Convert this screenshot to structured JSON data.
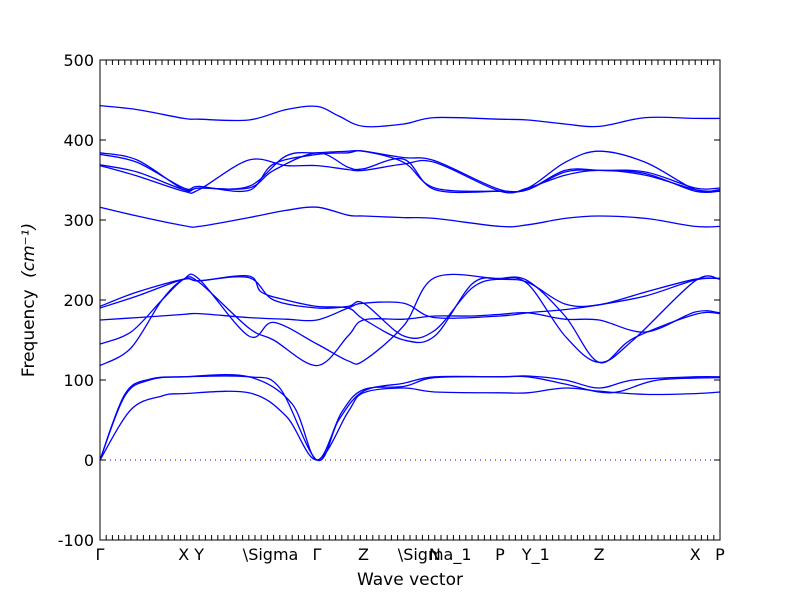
{
  "chart_data": {
    "type": "line",
    "xlabel": "Wave vector",
    "ylabel": "Frequency",
    "ylabel_unit": "(cm⁻¹)",
    "ylim": [
      -100,
      500
    ],
    "xlim": [
      0,
      1
    ],
    "yticks": [
      -100,
      0,
      100,
      200,
      300,
      400,
      500
    ],
    "zero_line": true,
    "hsym_points": [
      {
        "label": "Γ",
        "x": 0.0
      },
      {
        "label": "X",
        "x": 0.135
      },
      {
        "label": "Y",
        "x": 0.16
      },
      {
        "label": "\\Sigma",
        "x": 0.24
      },
      {
        "label": "Γ",
        "x": 0.35
      },
      {
        "label": "Z",
        "x": 0.425
      },
      {
        "label": "\\Sigma_1",
        "x": 0.49
      },
      {
        "label": "N",
        "x": 0.54
      },
      {
        "label": "P",
        "x": 0.645
      },
      {
        "label": "Y_1",
        "x": 0.69
      },
      {
        "label": "Z",
        "x": 0.805
      },
      {
        "label": "X",
        "x": 0.96
      },
      {
        "label": "P",
        "x": 1.0
      }
    ],
    "series": [
      {
        "points": [
          [
            0,
            0
          ],
          [
            0.05,
            63
          ],
          [
            0.1,
            80
          ],
          [
            0.135,
            83
          ],
          [
            0.24,
            84
          ],
          [
            0.3,
            55
          ],
          [
            0.35,
            0
          ],
          [
            0.4,
            60
          ],
          [
            0.425,
            84
          ],
          [
            0.49,
            90
          ],
          [
            0.54,
            85
          ],
          [
            0.645,
            84
          ],
          [
            0.69,
            84
          ],
          [
            0.75,
            90
          ],
          [
            0.805,
            86
          ],
          [
            0.88,
            82
          ],
          [
            0.96,
            83
          ],
          [
            1.0,
            85
          ]
        ]
      },
      {
        "points": [
          [
            0,
            0
          ],
          [
            0.04,
            80
          ],
          [
            0.08,
            100
          ],
          [
            0.135,
            104
          ],
          [
            0.24,
            104
          ],
          [
            0.31,
            70
          ],
          [
            0.35,
            0
          ],
          [
            0.39,
            60
          ],
          [
            0.425,
            88
          ],
          [
            0.49,
            92
          ],
          [
            0.54,
            103
          ],
          [
            0.645,
            104
          ],
          [
            0.69,
            104
          ],
          [
            0.75,
            95
          ],
          [
            0.805,
            85
          ],
          [
            0.84,
            86
          ],
          [
            0.9,
            100
          ],
          [
            1.0,
            103
          ]
        ]
      },
      {
        "points": [
          [
            0,
            0
          ],
          [
            0.04,
            82
          ],
          [
            0.08,
            101
          ],
          [
            0.135,
            104
          ],
          [
            0.24,
            104
          ],
          [
            0.29,
            90
          ],
          [
            0.35,
            0
          ],
          [
            0.385,
            50
          ],
          [
            0.425,
            86
          ],
          [
            0.49,
            96
          ],
          [
            0.54,
            104
          ],
          [
            0.645,
            104
          ],
          [
            0.69,
            105
          ],
          [
            0.75,
            100
          ],
          [
            0.805,
            90
          ],
          [
            0.86,
            100
          ],
          [
            0.96,
            104
          ],
          [
            1.0,
            104
          ]
        ]
      },
      {
        "points": [
          [
            0,
            118
          ],
          [
            0.05,
            140
          ],
          [
            0.1,
            200
          ],
          [
            0.135,
            226
          ],
          [
            0.16,
            222
          ],
          [
            0.24,
            165
          ],
          [
            0.28,
            150
          ],
          [
            0.35,
            118
          ],
          [
            0.4,
            155
          ],
          [
            0.425,
            175
          ],
          [
            0.49,
            176
          ],
          [
            0.54,
            180
          ],
          [
            0.6,
            180
          ],
          [
            0.645,
            182
          ],
          [
            0.69,
            184
          ],
          [
            0.75,
            176
          ],
          [
            0.805,
            175
          ],
          [
            0.88,
            160
          ],
          [
            0.96,
            185
          ],
          [
            1.0,
            184
          ]
        ]
      },
      {
        "points": [
          [
            0,
            145
          ],
          [
            0.05,
            160
          ],
          [
            0.1,
            200
          ],
          [
            0.135,
            226
          ],
          [
            0.16,
            226
          ],
          [
            0.24,
            155
          ],
          [
            0.28,
            172
          ],
          [
            0.35,
            145
          ],
          [
            0.4,
            124
          ],
          [
            0.425,
            124
          ],
          [
            0.49,
            168
          ],
          [
            0.54,
            228
          ],
          [
            0.645,
            226
          ],
          [
            0.69,
            222
          ],
          [
            0.75,
            195
          ],
          [
            0.805,
            194
          ],
          [
            0.88,
            210
          ],
          [
            0.96,
            226
          ],
          [
            1.0,
            227
          ]
        ]
      },
      {
        "points": [
          [
            0,
            175
          ],
          [
            0.06,
            178
          ],
          [
            0.135,
            182
          ],
          [
            0.16,
            183
          ],
          [
            0.24,
            178
          ],
          [
            0.3,
            176
          ],
          [
            0.35,
            175
          ],
          [
            0.4,
            190
          ],
          [
            0.425,
            196
          ],
          [
            0.49,
            196
          ],
          [
            0.54,
            178
          ],
          [
            0.645,
            180
          ],
          [
            0.69,
            184
          ],
          [
            0.75,
            188
          ],
          [
            0.805,
            194
          ],
          [
            0.88,
            205
          ],
          [
            0.96,
            225
          ],
          [
            1.0,
            227
          ]
        ]
      },
      {
        "points": [
          [
            0,
            190
          ],
          [
            0.06,
            205
          ],
          [
            0.135,
            226
          ],
          [
            0.16,
            224
          ],
          [
            0.24,
            228
          ],
          [
            0.28,
            200
          ],
          [
            0.35,
            190
          ],
          [
            0.4,
            192
          ],
          [
            0.425,
            196
          ],
          [
            0.49,
            155
          ],
          [
            0.54,
            162
          ],
          [
            0.6,
            215
          ],
          [
            0.645,
            226
          ],
          [
            0.69,
            220
          ],
          [
            0.75,
            155
          ],
          [
            0.805,
            122
          ],
          [
            0.86,
            150
          ],
          [
            0.96,
            224
          ],
          [
            1.0,
            226
          ]
        ]
      },
      {
        "points": [
          [
            0,
            192
          ],
          [
            0.06,
            210
          ],
          [
            0.135,
            226
          ],
          [
            0.16,
            224
          ],
          [
            0.24,
            230
          ],
          [
            0.26,
            210
          ],
          [
            0.3,
            200
          ],
          [
            0.35,
            192
          ],
          [
            0.4,
            190
          ],
          [
            0.425,
            176
          ],
          [
            0.49,
            150
          ],
          [
            0.54,
            155
          ],
          [
            0.6,
            220
          ],
          [
            0.645,
            227
          ],
          [
            0.69,
            224
          ],
          [
            0.75,
            180
          ],
          [
            0.805,
            122
          ],
          [
            0.86,
            152
          ],
          [
            0.96,
            182
          ],
          [
            1.0,
            183
          ]
        ]
      },
      {
        "points": [
          [
            0,
            316
          ],
          [
            0.06,
            305
          ],
          [
            0.135,
            293
          ],
          [
            0.16,
            292
          ],
          [
            0.24,
            303
          ],
          [
            0.3,
            312
          ],
          [
            0.35,
            316
          ],
          [
            0.4,
            306
          ],
          [
            0.425,
            305
          ],
          [
            0.49,
            303
          ],
          [
            0.54,
            302
          ],
          [
            0.645,
            292
          ],
          [
            0.69,
            294
          ],
          [
            0.75,
            302
          ],
          [
            0.805,
            305
          ],
          [
            0.88,
            302
          ],
          [
            0.96,
            292
          ],
          [
            1.0,
            292
          ]
        ]
      },
      {
        "points": [
          [
            0,
            368
          ],
          [
            0.06,
            355
          ],
          [
            0.135,
            336
          ],
          [
            0.16,
            338
          ],
          [
            0.24,
            375
          ],
          [
            0.3,
            368
          ],
          [
            0.35,
            368
          ],
          [
            0.4,
            363
          ],
          [
            0.425,
            362
          ],
          [
            0.49,
            370
          ],
          [
            0.54,
            372
          ],
          [
            0.645,
            336
          ],
          [
            0.69,
            340
          ],
          [
            0.75,
            356
          ],
          [
            0.805,
            362
          ],
          [
            0.88,
            356
          ],
          [
            0.96,
            338
          ],
          [
            1.0,
            336
          ]
        ]
      },
      {
        "points": [
          [
            0,
            369
          ],
          [
            0.06,
            360
          ],
          [
            0.135,
            338
          ],
          [
            0.16,
            340
          ],
          [
            0.24,
            342
          ],
          [
            0.3,
            380
          ],
          [
            0.35,
            384
          ],
          [
            0.4,
            386
          ],
          [
            0.425,
            386
          ],
          [
            0.49,
            378
          ],
          [
            0.54,
            374
          ],
          [
            0.645,
            338
          ],
          [
            0.69,
            340
          ],
          [
            0.75,
            372
          ],
          [
            0.805,
            386
          ],
          [
            0.88,
            372
          ],
          [
            0.96,
            338
          ],
          [
            1.0,
            338
          ]
        ]
      },
      {
        "points": [
          [
            0,
            382
          ],
          [
            0.06,
            372
          ],
          [
            0.135,
            340
          ],
          [
            0.16,
            342
          ],
          [
            0.24,
            337
          ],
          [
            0.28,
            370
          ],
          [
            0.35,
            382
          ],
          [
            0.4,
            384
          ],
          [
            0.425,
            386
          ],
          [
            0.49,
            372
          ],
          [
            0.54,
            340
          ],
          [
            0.645,
            336
          ],
          [
            0.69,
            338
          ],
          [
            0.75,
            360
          ],
          [
            0.805,
            362
          ],
          [
            0.88,
            360
          ],
          [
            0.96,
            340
          ],
          [
            1.0,
            340
          ]
        ]
      },
      {
        "points": [
          [
            0,
            384
          ],
          [
            0.06,
            375
          ],
          [
            0.135,
            338
          ],
          [
            0.16,
            340
          ],
          [
            0.24,
            340
          ],
          [
            0.28,
            362
          ],
          [
            0.35,
            384
          ],
          [
            0.4,
            366
          ],
          [
            0.425,
            364
          ],
          [
            0.49,
            376
          ],
          [
            0.54,
            338
          ],
          [
            0.645,
            336
          ],
          [
            0.69,
            338
          ],
          [
            0.75,
            362
          ],
          [
            0.805,
            362
          ],
          [
            0.88,
            358
          ],
          [
            0.96,
            336
          ],
          [
            1.0,
            336
          ]
        ]
      },
      {
        "points": [
          [
            0,
            443
          ],
          [
            0.06,
            438
          ],
          [
            0.135,
            427
          ],
          [
            0.16,
            426
          ],
          [
            0.24,
            425
          ],
          [
            0.3,
            438
          ],
          [
            0.35,
            442
          ],
          [
            0.385,
            430
          ],
          [
            0.425,
            417
          ],
          [
            0.49,
            420
          ],
          [
            0.54,
            428
          ],
          [
            0.645,
            426
          ],
          [
            0.69,
            425
          ],
          [
            0.75,
            420
          ],
          [
            0.805,
            417
          ],
          [
            0.88,
            428
          ],
          [
            0.96,
            427
          ],
          [
            1.0,
            427
          ]
        ]
      }
    ]
  }
}
